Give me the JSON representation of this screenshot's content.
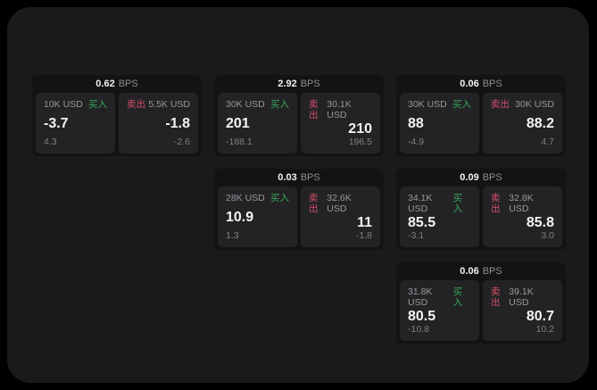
{
  "colors": {
    "page_bg": "#000000",
    "window_bg": "#1a1a1c",
    "card_bg": "#131315",
    "panel_bg": "#232325",
    "text_primary": "#f4f4f6",
    "text_secondary": "#98989d",
    "buy_green": "#36a85a",
    "sell_red": "#d44f6a"
  },
  "labels": {
    "bps_unit": "BPS",
    "buy": "买入",
    "sell": "卖出"
  },
  "cards": [
    {
      "bps": "0.62",
      "buy": {
        "amount": "10K USD",
        "value": "-3.7",
        "delta": "4.3"
      },
      "sell": {
        "amount": "5.5K USD",
        "value": "-1.8",
        "delta": "-2.6"
      }
    },
    {
      "bps": "2.92",
      "buy": {
        "amount": "30K USD",
        "value": "201",
        "delta": "-188.1"
      },
      "sell": {
        "amount": "30.1K USD",
        "value": "210",
        "delta": "196.5"
      }
    },
    {
      "bps": "0.06",
      "buy": {
        "amount": "30K USD",
        "value": "88",
        "delta": "-4.9"
      },
      "sell": {
        "amount": "30K USD",
        "value": "88.2",
        "delta": "4.7"
      }
    },
    {
      "bps": "0.03",
      "buy": {
        "amount": "28K USD",
        "value": "10.9",
        "delta": "1.3"
      },
      "sell": {
        "amount": "32.6K USD",
        "value": "11",
        "delta": "-1.8"
      }
    },
    {
      "bps": "0.09",
      "buy": {
        "amount": "34.1K USD",
        "value": "85.5",
        "delta": "-3.1"
      },
      "sell": {
        "amount": "32.8K USD",
        "value": "85.8",
        "delta": "3.0"
      }
    },
    {
      "bps": "0.06",
      "buy": {
        "amount": "31.8K USD",
        "value": "80.5",
        "delta": "-10.8"
      },
      "sell": {
        "amount": "39.1K USD",
        "value": "80.7",
        "delta": "10.2"
      }
    }
  ]
}
